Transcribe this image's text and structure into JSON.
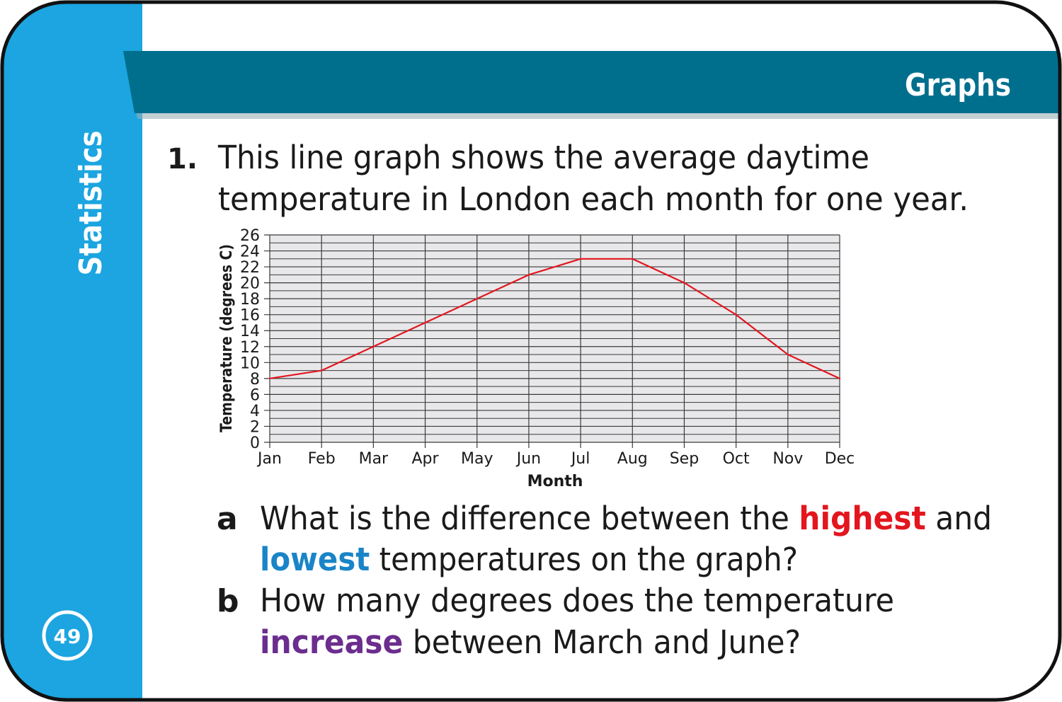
{
  "header": {
    "title": "Graphs"
  },
  "sidebar": {
    "label": "Statistics",
    "page_number": "49"
  },
  "question": {
    "number": "1.",
    "line1": "This line graph shows the average daytime",
    "line2": "temperature in London each month for one year.",
    "parts": [
      {
        "letter": "a",
        "line1": [
          {
            "text": "What is the difference between the ",
            "color": "#1a1a1a"
          },
          {
            "text": "highest",
            "color": "#e3161e",
            "bold": true
          },
          {
            "text": " and",
            "color": "#1a1a1a"
          }
        ],
        "line2": [
          {
            "text": "lowest",
            "color": "#1a84c7",
            "bold": true
          },
          {
            "text": " temperatures on the graph?",
            "color": "#1a1a1a"
          }
        ]
      },
      {
        "letter": "b",
        "line1": [
          {
            "text": "How many degrees does the temperature",
            "color": "#1a1a1a"
          }
        ],
        "line2": [
          {
            "text": "increase",
            "color": "#6b2d8e",
            "bold": true
          },
          {
            "text": " between March and June?",
            "color": "#1a1a1a"
          }
        ]
      }
    ]
  },
  "colors": {
    "sidebar": "#1ca5e0",
    "banner": "#006f8e",
    "line": "#e3161e",
    "plot_bg": "#e8e8ea"
  },
  "chart_data": {
    "type": "line",
    "categories": [
      "Jan",
      "Feb",
      "Mar",
      "Apr",
      "May",
      "Jun",
      "Jul",
      "Aug",
      "Sep",
      "Oct",
      "Nov",
      "Dec"
    ],
    "series": [
      {
        "values": [
          8,
          9,
          12,
          15,
          18,
          21,
          23,
          23,
          20,
          16,
          11,
          8
        ]
      }
    ],
    "xlabel": "Month",
    "ylabel": "Temperature (degrees C)",
    "ylim": [
      0,
      26
    ],
    "yticks": [
      0,
      2,
      4,
      6,
      8,
      10,
      12,
      14,
      16,
      18,
      20,
      22,
      24,
      26
    ],
    "grid": true
  }
}
